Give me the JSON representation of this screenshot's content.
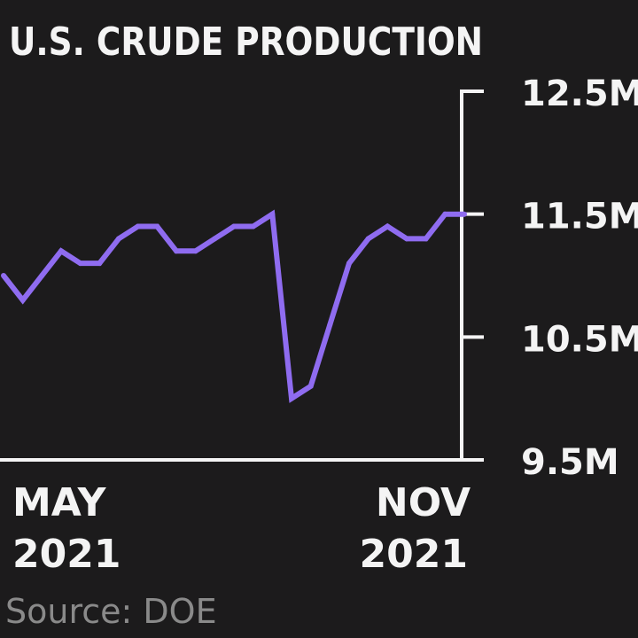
{
  "chart_data": {
    "type": "line",
    "title": "U.S. CRUDE PRODUCTION",
    "source": "Source: DOE",
    "x_tick_labels": [
      {
        "line1": "MAY",
        "line2": "2021"
      },
      {
        "line1": "NOV",
        "line2": "2021"
      }
    ],
    "y_ticks": [
      {
        "value": 12.5,
        "label": "12.5M"
      },
      {
        "value": 11.5,
        "label": "11.5M"
      },
      {
        "value": 10.5,
        "label": "10.5M"
      },
      {
        "value": 9.5,
        "label": "9.5M"
      }
    ],
    "ylim": [
      9.5,
      12.5
    ],
    "grid": false,
    "colors": {
      "background": "#1c1b1c",
      "line": "#8f6cf0",
      "axis": "#f4f4f4",
      "text": "#f4f4f4",
      "source": "#8a8a8a"
    },
    "series": [
      {
        "values": [
          11.0,
          10.8,
          11.0,
          11.2,
          11.1,
          11.1,
          11.3,
          11.4,
          11.4,
          11.2,
          11.2,
          11.3,
          11.4,
          11.4,
          11.5,
          10.0,
          10.1,
          10.6,
          11.1,
          11.3,
          11.4,
          11.3,
          11.3,
          11.5,
          11.5
        ]
      }
    ]
  }
}
